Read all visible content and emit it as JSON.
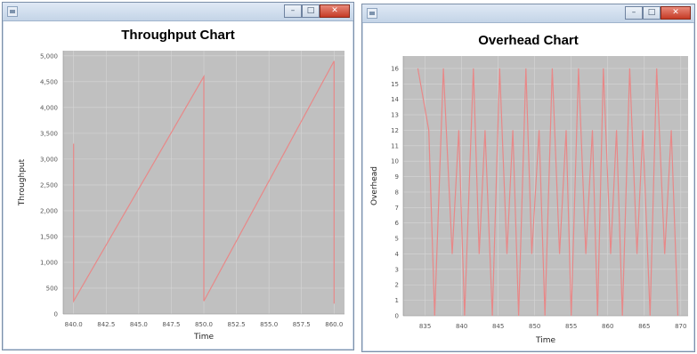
{
  "windows": [
    {
      "title": "",
      "controls": {
        "minimize": "–",
        "maximize": "□",
        "close": "✕"
      },
      "chart_title": "Throughput Chart"
    },
    {
      "title": "",
      "controls": {
        "minimize": "–",
        "maximize": "□",
        "close": "✕"
      },
      "chart_title": "Overhead Chart"
    }
  ],
  "chart_data": [
    {
      "type": "line",
      "title": "Throughput Chart",
      "xlabel": "Time",
      "ylabel": "Throughput",
      "xlim": [
        839.2,
        860.8
      ],
      "ylim": [
        0,
        5100
      ],
      "xticks": [
        "840.0",
        "842.5",
        "845.0",
        "847.5",
        "850.0",
        "852.5",
        "855.0",
        "857.5",
        "860.0"
      ],
      "yticks": [
        "0",
        "500",
        "1,000",
        "1,500",
        "2,000",
        "2,500",
        "3,000",
        "3,500",
        "4,000",
        "4,500",
        "5,000"
      ],
      "grid": true,
      "color": "#e88888",
      "series": [
        {
          "x": [
            840.0,
            840.0,
            850.0,
            850.0,
            860.0,
            860.0
          ],
          "y": [
            3300,
            250,
            4600,
            250,
            4900,
            200
          ]
        }
      ]
    },
    {
      "type": "line",
      "title": "Overhead Chart",
      "xlabel": "Time",
      "ylabel": "Overhead",
      "xlim": [
        832,
        871
      ],
      "ylim": [
        0,
        16.8
      ],
      "xticks": [
        "835",
        "840",
        "845",
        "850",
        "855",
        "860",
        "865",
        "870"
      ],
      "yticks": [
        "0",
        "1",
        "2",
        "3",
        "4",
        "5",
        "6",
        "7",
        "8",
        "9",
        "10",
        "11",
        "12",
        "13",
        "14",
        "15",
        "16"
      ],
      "grid": true,
      "color": "#e88888",
      "series": [
        {
          "x": [
            834,
            835.5,
            836.3,
            837.5,
            838.7,
            839.6,
            840.4,
            841.6,
            842.4,
            843.2,
            844.2,
            845.2,
            846.2,
            847.0,
            847.8,
            848.8,
            849.6,
            850.6,
            851.4,
            852.4,
            853.4,
            854.3,
            855.0,
            856.0,
            857.0,
            857.9,
            858.6,
            859.4,
            860.4,
            861.2,
            862.0,
            863.0,
            864.0,
            864.8,
            865.8,
            866.7,
            867.8,
            868.7,
            869.6
          ],
          "y": [
            16,
            12,
            0,
            16,
            4,
            12,
            0,
            16,
            4,
            12,
            0,
            16,
            4,
            12,
            0,
            16,
            4,
            12,
            0,
            16,
            4,
            12,
            0,
            16,
            4,
            12,
            0,
            16,
            4,
            12,
            0,
            16,
            4,
            12,
            0,
            16,
            4,
            12,
            0
          ]
        }
      ]
    }
  ]
}
